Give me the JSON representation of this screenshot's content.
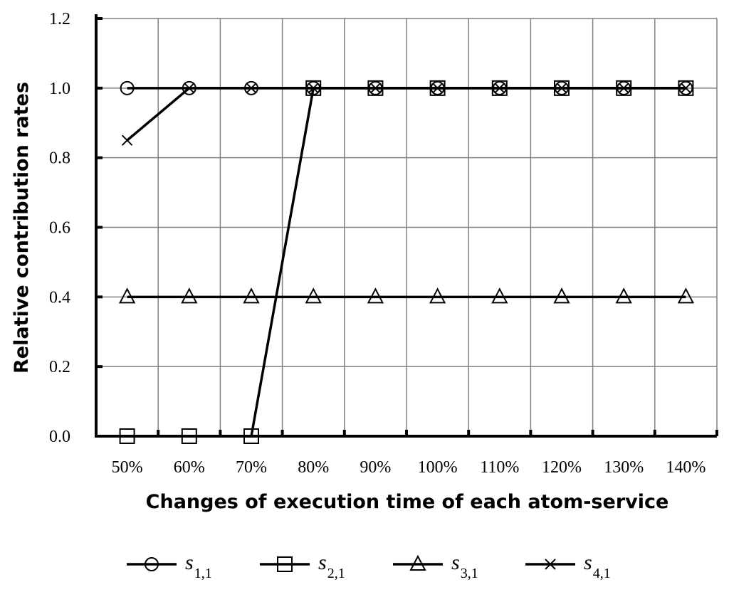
{
  "chart_data": {
    "type": "line",
    "xlabel": "Changes of execution time of each atom-service",
    "ylabel": "Relative contribution rates",
    "categories": [
      "50%",
      "60%",
      "70%",
      "80%",
      "90%",
      "100%",
      "110%",
      "120%",
      "130%",
      "140%"
    ],
    "ylim": [
      0,
      1.2
    ],
    "yticks": [
      "0.0",
      "0.2",
      "0.4",
      "0.6",
      "0.8",
      "1.0",
      "1.2"
    ],
    "grid": true,
    "legend_position": "bottom",
    "series": [
      {
        "name": "s",
        "subscript": "1,1",
        "marker": "circle",
        "values": [
          1.0,
          1.0,
          1.0,
          1.0,
          1.0,
          1.0,
          1.0,
          1.0,
          1.0,
          1.0
        ]
      },
      {
        "name": "s",
        "subscript": "2,1",
        "marker": "square",
        "values": [
          0.0,
          0.0,
          0.0,
          1.0,
          1.0,
          1.0,
          1.0,
          1.0,
          1.0,
          1.0
        ]
      },
      {
        "name": "s",
        "subscript": "3,1",
        "marker": "triangle",
        "values": [
          0.4,
          0.4,
          0.4,
          0.4,
          0.4,
          0.4,
          0.4,
          0.4,
          0.4,
          0.4
        ]
      },
      {
        "name": "s",
        "subscript": "4,1",
        "marker": "cross",
        "values": [
          0.85,
          1.0,
          1.0,
          1.0,
          1.0,
          1.0,
          1.0,
          1.0,
          1.0,
          1.0
        ]
      }
    ]
  }
}
